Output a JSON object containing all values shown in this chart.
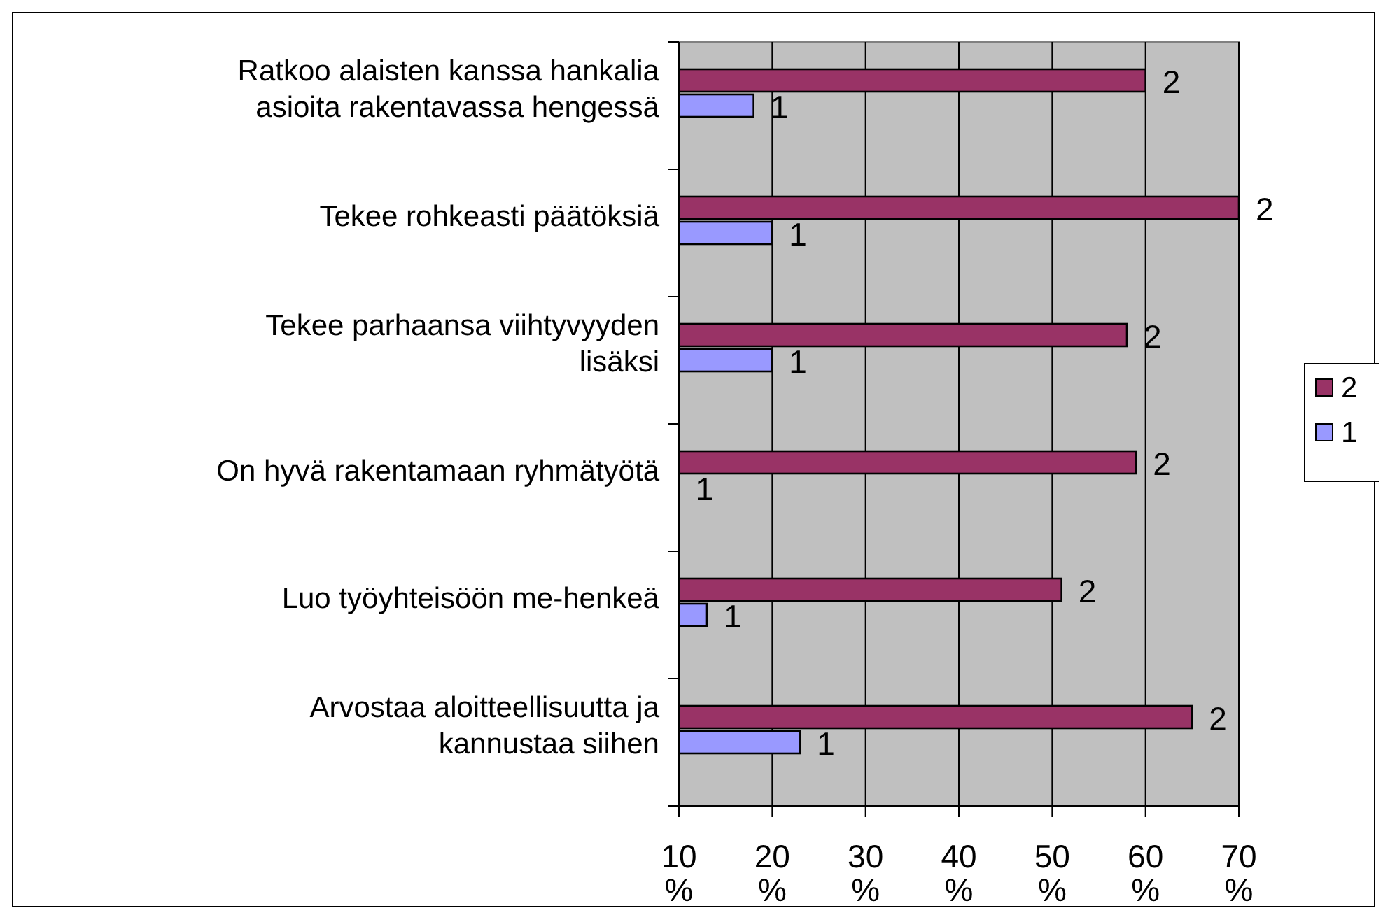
{
  "chart_data": {
    "type": "bar",
    "orientation": "horizontal",
    "categories": [
      "Ratkoo alaisten kanssa hankalia asioita rakentavassa hengessä",
      "Tekee rohkeasti päätöksiä",
      "Tekee parhaansa viihtyvyyden lisäksi",
      "On hyvä rakentamaan ryhmätyötä",
      "Luo työyhteisöön me-henkeä",
      "Arvostaa aloitteellisuutta ja kannustaa siihen"
    ],
    "series": [
      {
        "name": "2",
        "color": "#993366",
        "values": [
          60,
          70,
          58,
          59,
          51,
          65
        ]
      },
      {
        "name": "1",
        "color": "#9999ff",
        "values": [
          18,
          20,
          20,
          10,
          13,
          23
        ]
      }
    ],
    "xlim": [
      10,
      70
    ],
    "xticks": [
      {
        "value": 10,
        "label": "10 %"
      },
      {
        "value": 20,
        "label": "20 %"
      },
      {
        "value": 30,
        "label": "30 %"
      },
      {
        "value": 40,
        "label": "40 %"
      },
      {
        "value": 50,
        "label": "50 %"
      },
      {
        "value": 60,
        "label": "60 %"
      },
      {
        "value": 70,
        "label": "70 %"
      }
    ],
    "grid": "x",
    "legend": "right"
  }
}
